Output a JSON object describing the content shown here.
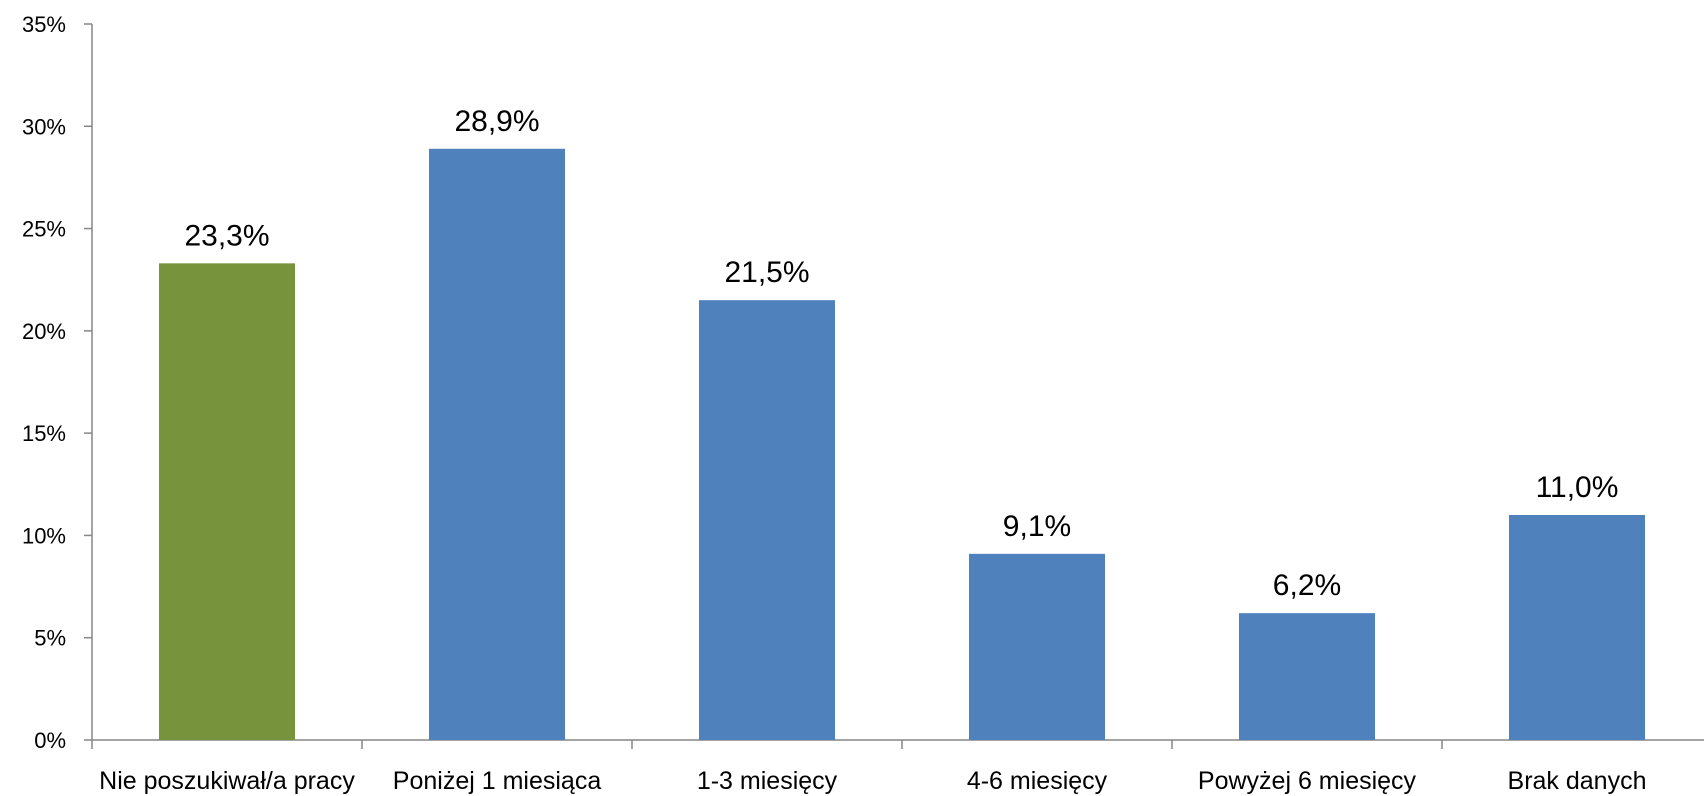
{
  "chart_data": {
    "type": "bar",
    "title": "",
    "xlabel": "",
    "ylabel": "",
    "categories": [
      "Nie poszukiwał/a pracy",
      "Poniżej 1 miesiąca",
      "1-3 miesięcy",
      "4-6 miesięcy",
      "Powyżej 6 miesięcy",
      "Brak danych"
    ],
    "values": [
      23.3,
      28.9,
      21.5,
      9.1,
      6.2,
      11.0
    ],
    "data_labels": [
      "23,3%",
      "28,9%",
      "21,5%",
      "9,1%",
      "6,2%",
      "11,0%"
    ],
    "bar_colors": [
      "#77933c",
      "#4f81bd",
      "#4f81bd",
      "#4f81bd",
      "#4f81bd",
      "#4f81bd"
    ],
    "ylim": [
      0,
      35
    ],
    "y_ticks": [
      0,
      5,
      10,
      15,
      20,
      25,
      30,
      35
    ],
    "y_tick_labels": [
      "0%",
      "5%",
      "10%",
      "15%",
      "20%",
      "25%",
      "30%",
      "35%"
    ],
    "grid": false,
    "legend": "none"
  }
}
